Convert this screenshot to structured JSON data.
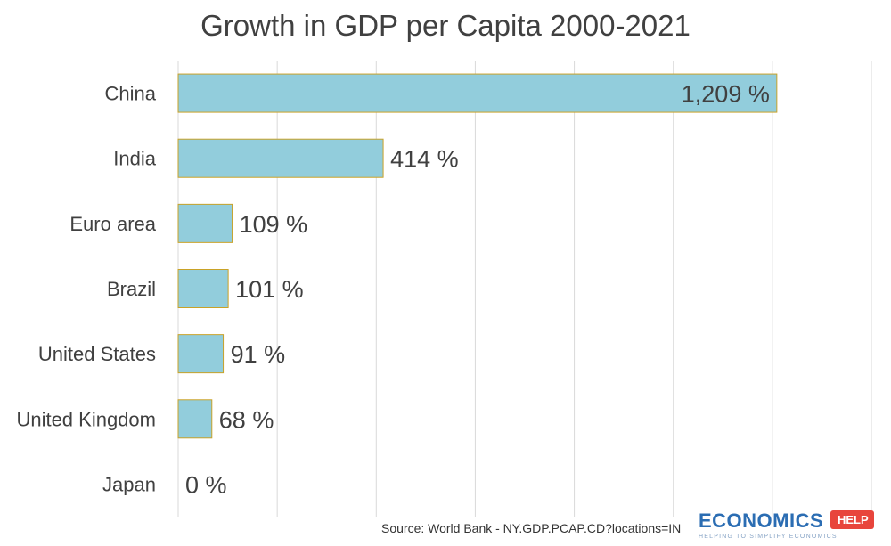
{
  "chart_data": {
    "type": "bar",
    "orientation": "horizontal",
    "title": "Growth in GDP per Capita 2000-2021",
    "categories": [
      "China",
      "India",
      "Euro area",
      "Brazil",
      "United States",
      "United Kingdom",
      "Japan"
    ],
    "values": [
      1209,
      414,
      109,
      101,
      91,
      68,
      0
    ],
    "value_labels": [
      "1,209 %",
      "414 %",
      "109 %",
      "101 %",
      "91 %",
      "68 %",
      "0 %"
    ],
    "xlim": [
      0,
      1400
    ],
    "grid": true,
    "xlabel": "",
    "ylabel": "",
    "colors": {
      "bar_fill": "#92cddc",
      "bar_edge": "#c9a227",
      "grid": "#d9d9d9",
      "text": "#404040"
    }
  },
  "source": "Source: World Bank - NY.GDP.PCAP.CD?locations=IN",
  "logo": {
    "main": "ECONOMICS",
    "badge": "HELP",
    "tagline": "HELPING TO SIMPLIFY ECONOMICS"
  }
}
